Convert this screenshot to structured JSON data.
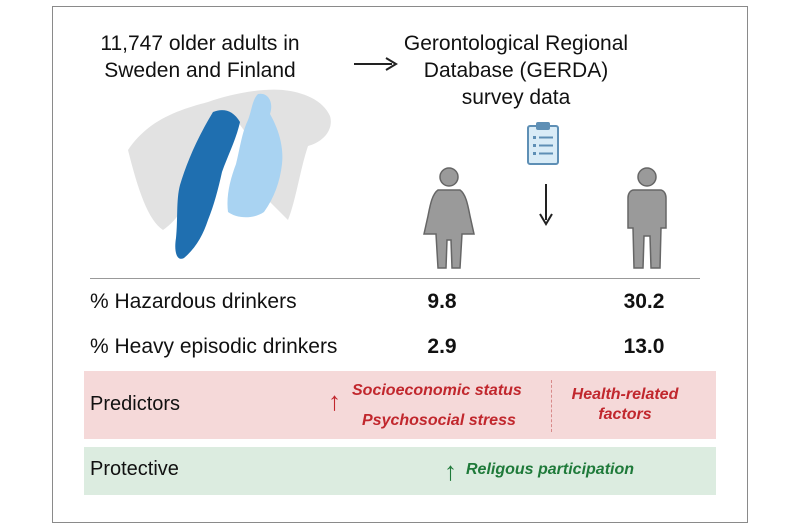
{
  "header": {
    "population_line1": "11,747 older adults in",
    "population_line2": "Sweden and Finland",
    "source_line1": "Gerontological Regional",
    "source_line2": "Database (GERDA)",
    "source_line3": "survey data"
  },
  "icons": {
    "map": "scandinavia-map-icon",
    "clipboard": "clipboard-icon",
    "female": "female-person-icon",
    "male": "male-person-icon",
    "arrow_right": "arrow-right-icon",
    "arrow_down": "arrow-down-icon",
    "up_arrow_glyph": "↑"
  },
  "stats": [
    {
      "label": "% Hazardous drinkers",
      "female": "9.8",
      "male": "30.2"
    },
    {
      "label": "% Heavy episodic drinkers",
      "female": "2.9",
      "male": "13.0"
    }
  ],
  "predictors": {
    "label": "Predictors",
    "left_line1": "Socioeconomic status",
    "left_line2": "Psychosocial stress",
    "right_line1": "Health-related",
    "right_line2": "factors"
  },
  "protective": {
    "label": "Protective",
    "item": "Religous participation"
  },
  "colors": {
    "sweden": "#1f6fb0",
    "finland": "#a9d3f2",
    "land": "#e2e2e2",
    "predictor_band": "#f5d9d9",
    "protective_band": "#dcece0",
    "predictor_text": "#c1272d",
    "protective_text": "#1f7a3a",
    "person": "#9a9a9a"
  }
}
